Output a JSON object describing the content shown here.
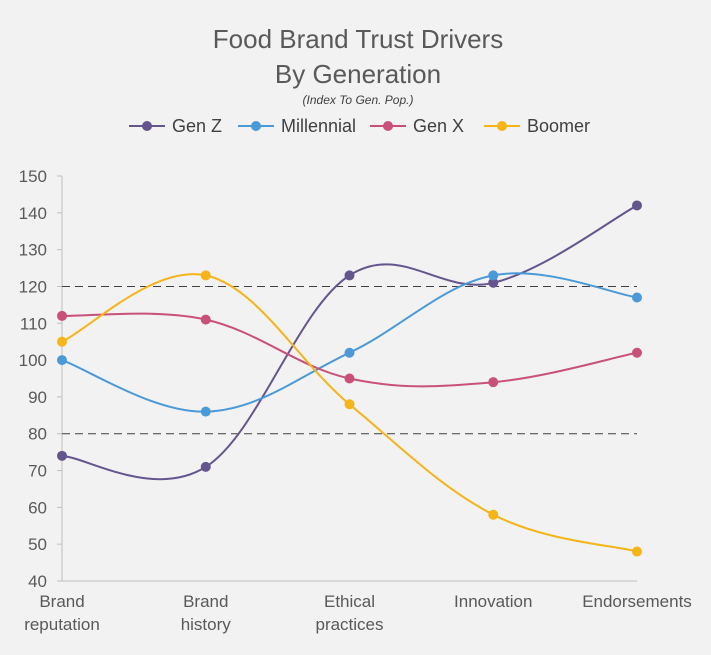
{
  "chart_data": {
    "type": "line",
    "title_line1": "Food Brand Trust Drivers",
    "title_line2": "By Generation",
    "subtitle": "(Index To Gen. Pop.)",
    "categories": [
      [
        "Brand",
        "reputation"
      ],
      [
        "Brand",
        "history"
      ],
      [
        "Ethical",
        "practices"
      ],
      [
        "Innovation"
      ],
      [
        "Endorsements"
      ]
    ],
    "series": [
      {
        "name": "Gen Z",
        "color": "#65558f",
        "values": [
          74,
          71,
          123,
          121,
          142
        ]
      },
      {
        "name": "Millennial",
        "color": "#4a9ad7",
        "values": [
          100,
          86,
          102,
          123,
          117
        ]
      },
      {
        "name": "Gen X",
        "color": "#c8507a",
        "values": [
          112,
          111,
          95,
          94,
          102
        ]
      },
      {
        "name": "Boomer",
        "color": "#f5b418",
        "values": [
          105,
          123,
          88,
          58,
          48
        ]
      }
    ],
    "yticks": [
      40,
      50,
      60,
      70,
      80,
      90,
      100,
      110,
      120,
      130,
      140,
      150
    ],
    "ylim": [
      40,
      150
    ],
    "reference_lines": [
      80,
      120
    ],
    "legend_position": "top-center"
  }
}
